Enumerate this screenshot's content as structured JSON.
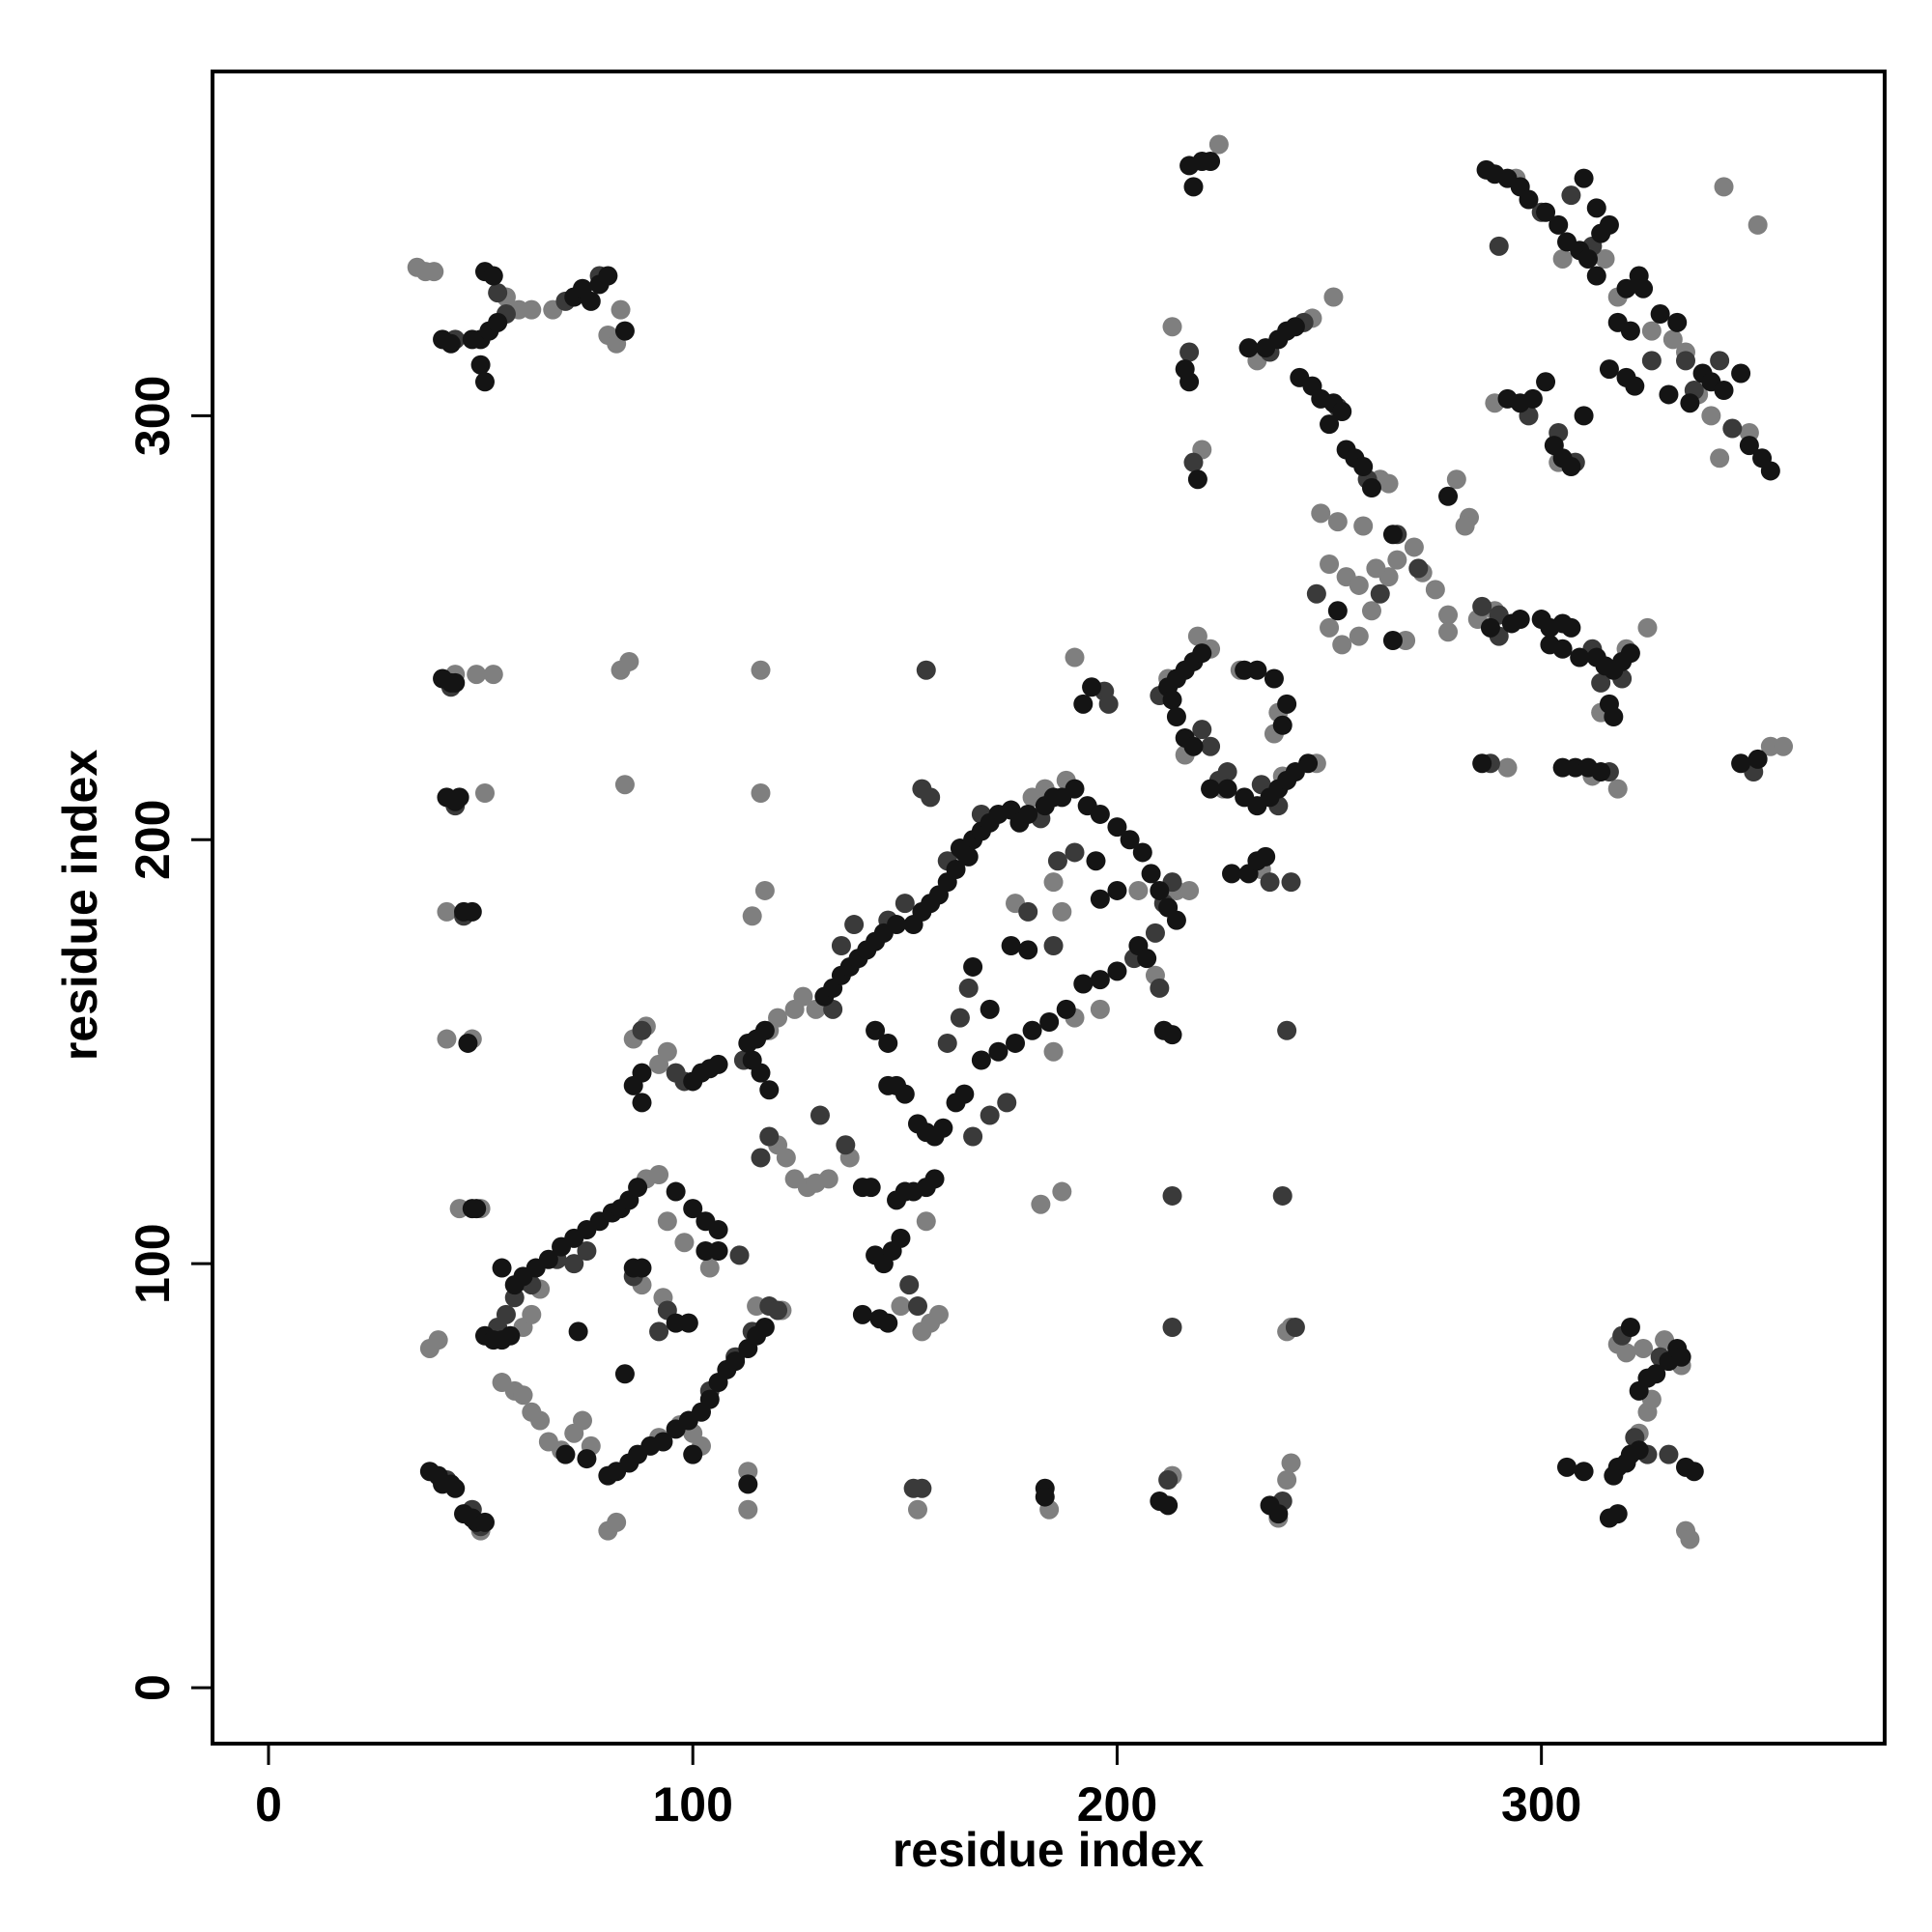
{
  "chart_data": {
    "type": "scatter",
    "xlabel": "residue index",
    "ylabel": "residue index",
    "xlim": [
      -13.2,
      380.9
    ],
    "ylim": [
      -13.2,
      381.2
    ],
    "xticks": [
      0,
      100,
      200,
      300
    ],
    "yticks": [
      0,
      100,
      200,
      300
    ],
    "series": [
      {
        "color": "#7f7f7f",
        "x": [
          35,
          37,
          39,
          56,
          59,
          62,
          67,
          83,
          80,
          82,
          224,
          294,
          305,
          318,
          326,
          331,
          337,
          340,
          342,
          349,
          343,
          351,
          315,
          304,
          289,
          334,
          213,
          220,
          233,
          246,
          251,
          264,
          262,
          248,
          252,
          250,
          254,
          257,
          250,
          253,
          257,
          260,
          264,
          266,
          270,
          272,
          275,
          278,
          278,
          280,
          283,
          282,
          268,
          261,
          258,
          285,
          289,
          320,
          325,
          292,
          318,
          312,
          354,
          357,
          314,
          44,
          49,
          53,
          51,
          42,
          42,
          45,
          50,
          48,
          83,
          85,
          84,
          116,
          116,
          117,
          114,
          182,
          187,
          241,
          240,
          50,
          80,
          82,
          113,
          113,
          153,
          184,
          213,
          238,
          240,
          241,
          318,
          320,
          324,
          325,
          326,
          329,
          333,
          334,
          335,
          323,
          38,
          40,
          55,
          58,
          60,
          62,
          64,
          66,
          69,
          72,
          74,
          76,
          89,
          92,
          94,
          97,
          100,
          102,
          60,
          62,
          64,
          104,
          121,
          115,
          88,
          93,
          92,
          98,
          120,
          122,
          124,
          127,
          129,
          132,
          118,
          120,
          124,
          126,
          129,
          187,
          185,
          176,
          185,
          190,
          196,
          214,
          217,
          205,
          209,
          154,
          156,
          158,
          149,
          86,
          89,
          92,
          94,
          180,
          183,
          188,
          155,
          137,
          219,
          222,
          225,
          239,
          247,
          237,
          238,
          229,
          190,
          212,
          234,
          216
        ],
        "values": [
          335,
          334,
          334,
          328,
          325,
          325,
          325,
          325,
          319,
          317,
          364,
          356,
          337,
          328,
          320,
          318,
          305,
          300,
          290,
          296,
          354,
          345,
          337,
          289,
          303,
          315,
          321,
          292,
          313,
          323,
          328,
          284,
          285,
          277,
          275,
          265,
          262,
          260,
          250,
          246,
          248,
          254,
          262,
          266,
          269,
          263,
          259,
          253,
          249,
          285,
          276,
          274,
          247,
          264,
          274,
          252,
          254,
          245,
          250,
          217,
          212,
          215,
          222,
          222,
          230,
          239,
          239,
          239,
          211,
          183,
          153,
          113,
          113,
          153,
          240,
          242,
          213,
          240,
          211,
          188,
          182,
          114,
          117,
          85,
          84,
          37,
          37,
          39,
          42,
          51,
          42,
          42,
          50,
          40,
          49,
          53,
          81,
          79,
          80,
          65,
          68,
          82,
          76,
          37,
          35,
          60,
          80,
          82,
          72,
          70,
          69,
          65,
          63,
          58,
          56,
          60,
          63,
          57,
          120,
          121,
          110,
          62,
          60,
          57,
          85,
          88,
          94,
          99,
          89,
          90,
          95,
          92,
          59,
          105,
          128,
          125,
          120,
          118,
          119,
          120,
          155,
          158,
          160,
          163,
          160,
          183,
          190,
          185,
          150,
          158,
          160,
          188,
          188,
          188,
          168,
          84,
          86,
          88,
          90,
          153,
          156,
          147,
          150,
          210,
          212,
          214,
          110,
          125,
          248,
          245,
          212,
          215,
          218,
          225,
          230,
          240,
          243,
          238,
          193,
          220
        ]
      },
      {
        "color": "#3a3a3a",
        "x": [
          54,
          56,
          70,
          78,
          44,
          300,
          307,
          312,
          326,
          334,
          336,
          342,
          345,
          304,
          308,
          297,
          290,
          217,
          218,
          236,
          244,
          252,
          259,
          247,
          262,
          266,
          271,
          286,
          290,
          290,
          312,
          314,
          319,
          288,
          316,
          350,
          43,
          44,
          46,
          155,
          213,
          239,
          240,
          213,
          242,
          42,
          48,
          50,
          152,
          154,
          212,
          239,
          322,
          319,
          328,
          330,
          325,
          54,
          56,
          58,
          62,
          68,
          75,
          86,
          94,
          92,
          104,
          110,
          114,
          60,
          72,
          118,
          120,
          111,
          133,
          135,
          138,
          146,
          150,
          160,
          168,
          182,
          186,
          190,
          204,
          209,
          211,
          213,
          179,
          185,
          165,
          163,
          160,
          170,
          174,
          166,
          150,
          136,
          130,
          118,
          116,
          154,
          156,
          112,
          98,
          96,
          88,
          151,
          153,
          210,
          210,
          220,
          222,
          224,
          234,
          238,
          241,
          236,
          226,
          197,
          198
        ],
        "values": [
          329,
          324,
          327,
          333,
          318,
          348,
          352,
          340,
          313,
          313,
          306,
          313,
          297,
          296,
          289,
          300,
          340,
          315,
          289,
          315,
          322,
          302,
          285,
          258,
          258,
          272,
          264,
          255,
          253,
          248,
          245,
          237,
          238,
          218,
          216,
          216,
          236,
          208,
          182,
          240,
          116,
          116,
          155,
          85,
          85,
          49,
          42,
          38,
          47,
          47,
          49,
          44,
          59,
          83,
          78,
          55,
          55,
          85,
          88,
          92,
          95,
          101,
          103,
          97,
          89,
          84,
          70,
          78,
          84,
          96,
          100,
          90,
          89,
          102,
          160,
          175,
          180,
          181,
          185,
          195,
          206,
          205,
          195,
          197,
          172,
          178,
          185,
          190,
          183,
          175,
          165,
          158,
          152,
          135,
          138,
          130,
          117,
          128,
          135,
          130,
          125,
          212,
          210,
          148,
          143,
          145,
          155,
          95,
          90,
          165,
          234,
          226,
          222,
          214,
          213,
          208,
          190,
          190,
          216,
          235,
          232
        ]
      },
      {
        "color": "#141414",
        "x": [
          51,
          53,
          41,
          43,
          48,
          50,
          52,
          54,
          50,
          51,
          72,
          74,
          76,
          78,
          80,
          84,
          217,
          218,
          220,
          222,
          287,
          289,
          292,
          295,
          297,
          301,
          304,
          306,
          309,
          311,
          313,
          314,
          310,
          313,
          316,
          320,
          318,
          321,
          323,
          324,
          328,
          332,
          330,
          335,
          338,
          340,
          343,
          347,
          349,
          352,
          354,
          316,
          320,
          322,
          292,
          295,
          298,
          301,
          303,
          305,
          307,
          310,
          216,
          217,
          219,
          231,
          235,
          238,
          240,
          242,
          243,
          246,
          248,
          251,
          253,
          254,
          256,
          258,
          260,
          250,
          252,
          265,
          278,
          265,
          288,
          293,
          295,
          300,
          302,
          305,
          307,
          302,
          305,
          309,
          313,
          315,
          317,
          319,
          321,
          316,
          317,
          305,
          308,
          311,
          314,
          347,
          351,
          286,
          41,
          43,
          44,
          42,
          44,
          45,
          46,
          48,
          48,
          49,
          47,
          38,
          40,
          41,
          43,
          44,
          46,
          48,
          49,
          51,
          113,
          183,
          183,
          210,
          212,
          236,
          238,
          306,
          310,
          316,
          318,
          317,
          318,
          320,
          321,
          323,
          321,
          323,
          325,
          327,
          330,
          332,
          333,
          334,
          336,
          51,
          53,
          55,
          57,
          55,
          58,
          60,
          63,
          66,
          69,
          72,
          75,
          78,
          81,
          83,
          85,
          87,
          86,
          88,
          73,
          84,
          80,
          82,
          85,
          87,
          90,
          93,
          96,
          99,
          102,
          104,
          106,
          108,
          110,
          113,
          115,
          117,
          103,
          106,
          96,
          99,
          96,
          100,
          103,
          106,
          100,
          70,
          75,
          113,
          115,
          117,
          114,
          116,
          118,
          131,
          133,
          135,
          137,
          139,
          141,
          143,
          145,
          148,
          152,
          154,
          156,
          158,
          160,
          162,
          164,
          166,
          168,
          170,
          172,
          175,
          177,
          179,
          183,
          185,
          187,
          190,
          193,
          196,
          200,
          203,
          206,
          208,
          210,
          212,
          214,
          211,
          213,
          205,
          207,
          200,
          196,
          192,
          188,
          184,
          180,
          176,
          172,
          168,
          164,
          162,
          159,
          157,
          155,
          153,
          150,
          148,
          146,
          140,
          142,
          148,
          150,
          152,
          155,
          157,
          143,
          145,
          147,
          149,
          140,
          144,
          146,
          163,
          165,
          175,
          179,
          195,
          196,
          200,
          143,
          146,
          166,
          170,
          100,
          102,
          104,
          106,
          88,
          86,
          88,
          212,
          214,
          216,
          218,
          220,
          213,
          214,
          216,
          218,
          222,
          226,
          230,
          233,
          236,
          238,
          240,
          242,
          245,
          239,
          240,
          237,
          233,
          230,
          227,
          231,
          233,
          235,
          192,
          194
        ],
        "values": [
          334,
          333,
          318,
          317,
          318,
          318,
          320,
          322,
          312,
          308,
          328,
          330,
          327,
          331,
          333,
          320,
          359,
          354,
          360,
          360,
          358,
          357,
          356,
          354,
          351,
          348,
          345,
          341,
          339,
          337,
          333,
          343,
          356,
          349,
          345,
          330,
          322,
          320,
          333,
          330,
          324,
          322,
          305,
          303,
          310,
          308,
          306,
          310,
          293,
          290,
          287,
          311,
          309,
          307,
          304,
          303,
          304,
          308,
          293,
          290,
          288,
          300,
          311,
          308,
          285,
          316,
          316,
          318,
          320,
          321,
          309,
          307,
          304,
          303,
          301,
          292,
          290,
          288,
          283,
          298,
          254,
          272,
          281,
          247,
          250,
          251,
          252,
          252,
          250,
          251,
          250,
          246,
          245,
          243,
          243,
          241,
          240,
          242,
          244,
          232,
          229,
          217,
          217,
          217,
          216,
          218,
          219,
          218,
          238,
          237,
          237,
          210,
          209,
          210,
          183,
          183,
          113,
          113,
          152,
          51,
          50,
          48,
          48,
          47,
          41,
          40,
          39,
          39,
          48,
          47,
          45,
          44,
          43,
          43,
          41,
          52,
          51,
          40,
          41,
          50,
          52,
          53,
          55,
          56,
          85,
          70,
          73,
          74,
          77,
          80,
          78,
          52,
          51,
          83,
          82,
          82,
          83,
          99,
          95,
          97,
          99,
          101,
          104,
          106,
          108,
          110,
          112,
          113,
          115,
          118,
          99,
          99,
          84,
          74,
          50,
          51,
          53,
          55,
          57,
          58,
          61,
          63,
          65,
          68,
          72,
          75,
          77,
          80,
          83,
          85,
          103,
          103,
          86,
          86,
          117,
          113,
          110,
          108,
          55,
          55,
          54,
          152,
          153,
          155,
          148,
          145,
          141,
          163,
          165,
          168,
          170,
          172,
          174,
          176,
          178,
          180,
          180,
          183,
          185,
          187,
          190,
          193,
          197,
          200,
          202,
          204,
          206,
          207,
          204,
          206,
          208,
          210,
          210,
          212,
          208,
          206,
          203,
          200,
          197,
          192,
          188,
          184,
          181,
          155,
          154,
          175,
          172,
          169,
          167,
          166,
          160,
          157,
          155,
          152,
          150,
          148,
          140,
          138,
          132,
          130,
          131,
          133,
          140,
          142,
          142,
          118,
          118,
          115,
          117,
          117,
          118,
          120,
          102,
          100,
          103,
          106,
          88,
          87,
          86,
          198,
          196,
          175,
          174,
          195,
          186,
          188,
          155,
          152,
          170,
          160,
          143,
          145,
          146,
          147,
          138,
          142,
          145,
          236,
          238,
          240,
          242,
          244,
          233,
          229,
          224,
          222,
          212,
          212,
          210,
          208,
          210,
          212,
          214,
          216,
          218,
          227,
          232,
          238,
          240,
          240,
          192,
          192,
          195,
          196,
          232,
          236
        ]
      }
    ]
  }
}
